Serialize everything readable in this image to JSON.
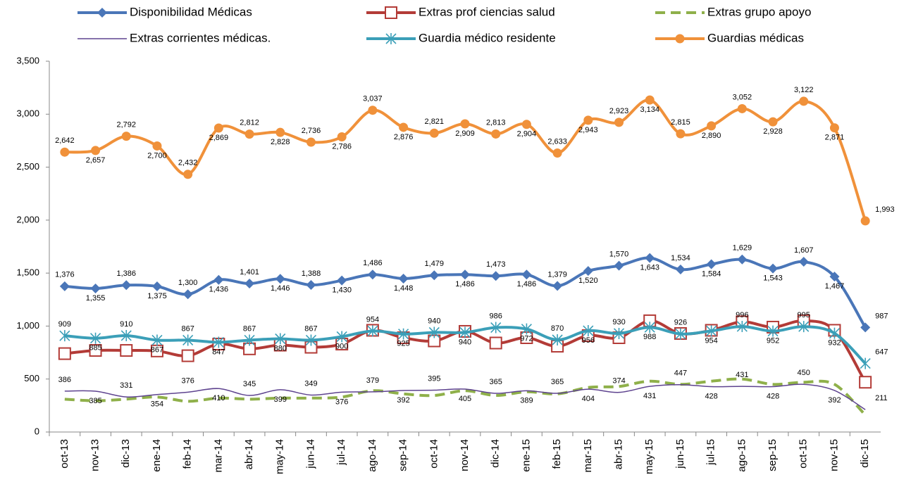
{
  "chart_data": {
    "type": "line",
    "categories": [
      "oct-13",
      "nov-13",
      "dic-13",
      "ene-14",
      "feb-14",
      "mar-14",
      "abr-14",
      "may-14",
      "jun-14",
      "jul-14",
      "ago-14",
      "sep-14",
      "oct-14",
      "nov-14",
      "dic-14",
      "ene-15",
      "feb-15",
      "mar-15",
      "abr-15",
      "may-15",
      "jun-15",
      "jul-15",
      "ago-15",
      "sep-15",
      "oct-15",
      "nov-15",
      "dic-15"
    ],
    "series": [
      {
        "name": "Disponibilidad  Médicas",
        "color": "#4a76b8",
        "marker": "diamond",
        "labels": true,
        "values": [
          1376,
          1355,
          1386,
          1375,
          1300,
          1436,
          1401,
          1446,
          1388,
          1430,
          1486,
          1448,
          1479,
          1486,
          1473,
          1486,
          1379,
          1520,
          1570,
          1643,
          1534,
          1584,
          1629,
          1543,
          1607,
          1467,
          987
        ]
      },
      {
        "name": "Extras prof ciencias salud",
        "color": "#b33b37",
        "marker": "square",
        "labels": false,
        "values": [
          740,
          770,
          770,
          765,
          720,
          830,
          785,
          820,
          800,
          830,
          960,
          890,
          860,
          950,
          840,
          890,
          810,
          910,
          890,
          1050,
          930,
          960,
          1040,
          990,
          1050,
          960,
          470
        ]
      },
      {
        "name": "Extras grupo apoyo",
        "color": "#8fb04a",
        "marker": "dash",
        "labels": false,
        "values": [
          310,
          295,
          310,
          330,
          290,
          320,
          310,
          320,
          320,
          330,
          390,
          360,
          345,
          390,
          345,
          380,
          360,
          420,
          430,
          480,
          450,
          480,
          500,
          450,
          470,
          450,
          160
        ]
      },
      {
        "name": "Extras corrientes médicas.",
        "color": "#5e438f",
        "marker": "none",
        "labels": true,
        "values": [
          386,
          385,
          331,
          354,
          376,
          410,
          345,
          399,
          349,
          376,
          379,
          392,
          395,
          405,
          365,
          389,
          365,
          404,
          374,
          431,
          447,
          428,
          431,
          428,
          450,
          392,
          211
        ]
      },
      {
        "name": "Guardia médico residente",
        "color": "#3b9fb8",
        "marker": "star",
        "labels": true,
        "values": [
          909,
          885,
          910,
          867,
          867,
          847,
          867,
          880,
          867,
          900,
          954,
          925,
          940,
          940,
          986,
          972,
          870,
          956,
          930,
          988,
          926,
          954,
          996,
          952,
          995,
          932,
          647
        ]
      },
      {
        "name": "Guardias médicas",
        "color": "#f0913a",
        "marker": "circle",
        "labels": true,
        "values": [
          2642,
          2657,
          2792,
          2700,
          2432,
          2869,
          2812,
          2828,
          2736,
          2786,
          3037,
          2876,
          2821,
          2909,
          2813,
          2904,
          2633,
          2943,
          2923,
          3134,
          2815,
          2890,
          3052,
          2928,
          3122,
          2871,
          1993
        ]
      }
    ],
    "ylim": [
      0,
      3500
    ],
    "yticks": [
      0,
      {
        "value": 500,
        "label": "500"
      },
      {
        "value": 1000,
        "label": "1,000"
      },
      {
        "value": 1500,
        "label": "1,500"
      },
      {
        "value": 2000,
        "label": "2,000"
      },
      {
        "value": 2500,
        "label": "2,500"
      },
      {
        "value": 3000,
        "label": "3,000"
      },
      {
        "value": 3500,
        "label": "3,500"
      }
    ],
    "legend": "top"
  }
}
